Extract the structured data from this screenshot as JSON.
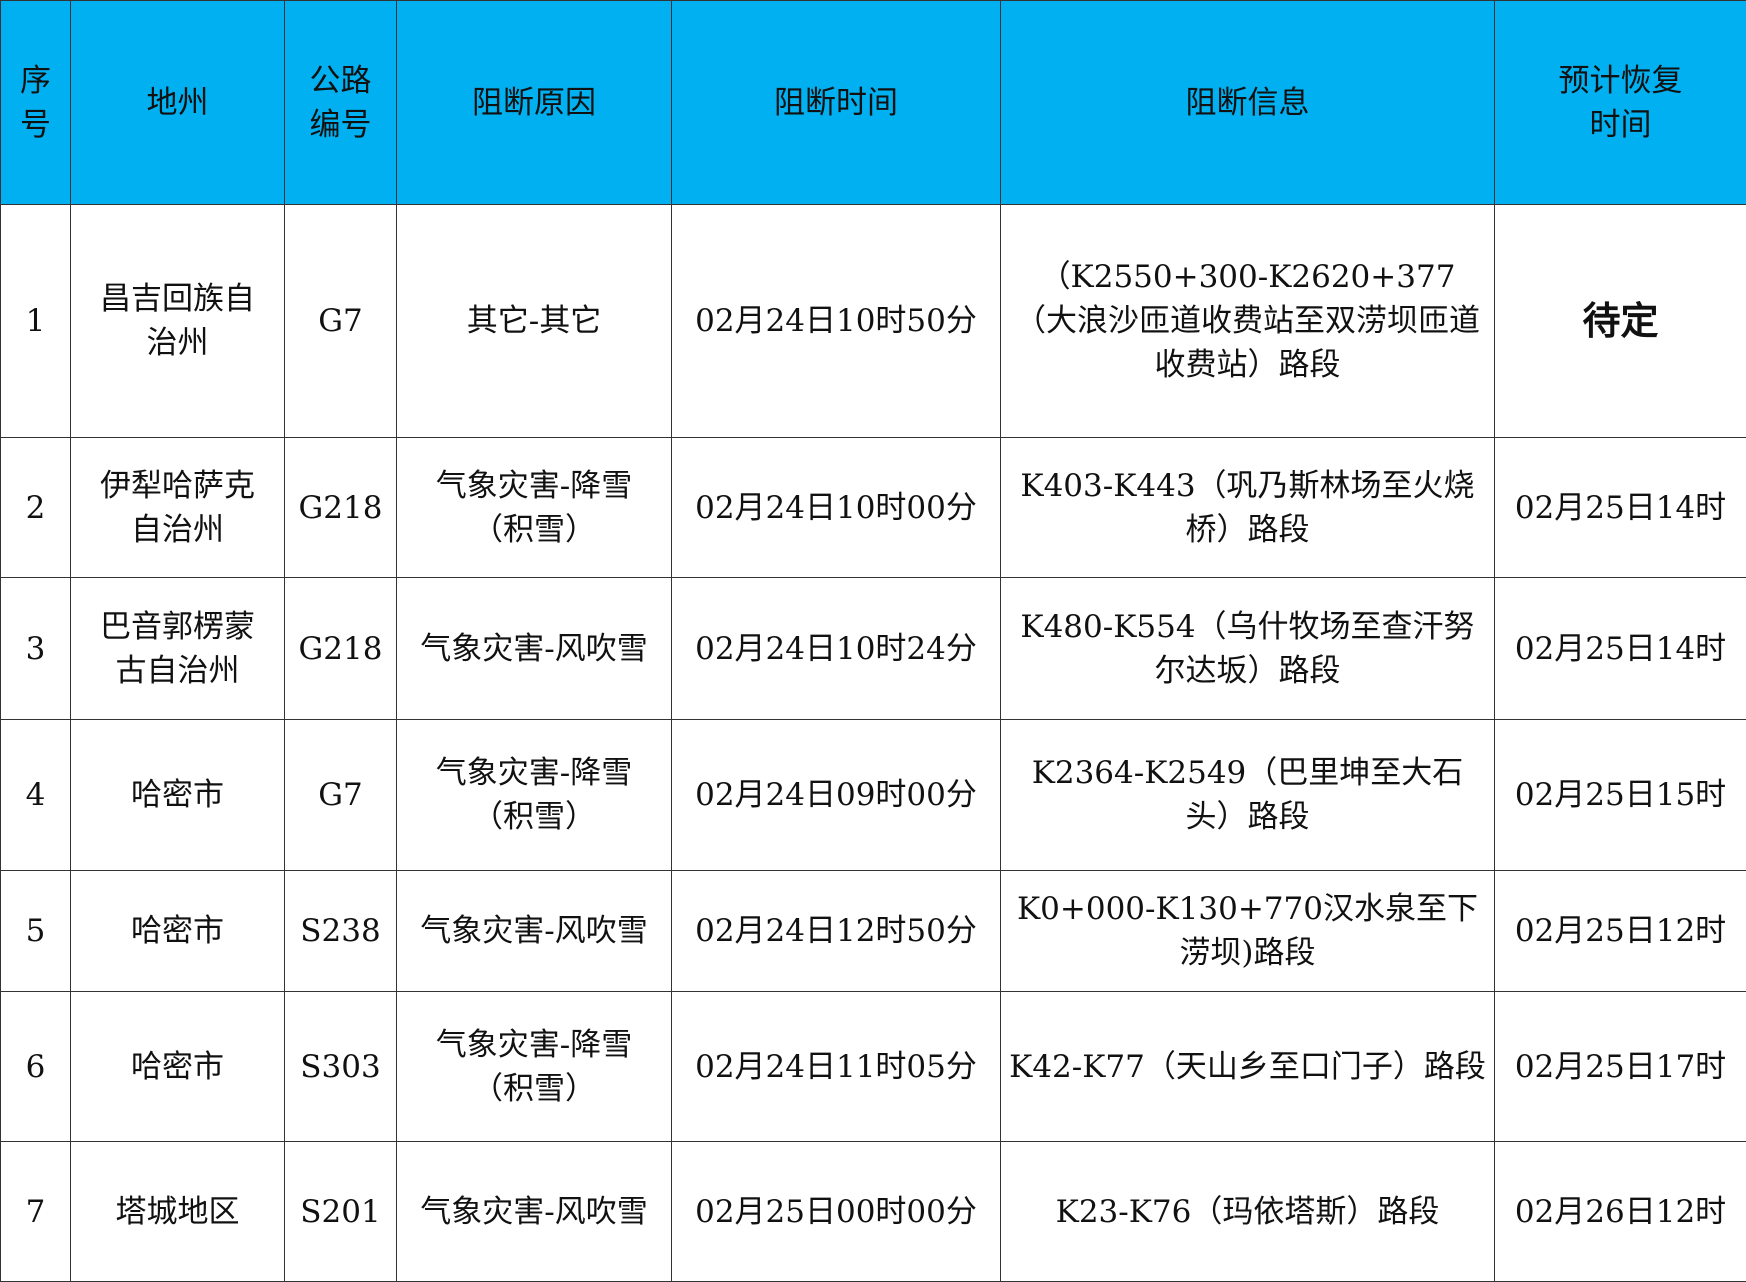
{
  "header_color": "#00b0f0",
  "columns": [
    "序号",
    "地州",
    "公路编号",
    "阻断原因",
    "阻断时间",
    "阻断信息",
    "预计恢复时间"
  ],
  "rows": [
    [
      "1",
      "昌吉回族自治州",
      "G7",
      "其它-其它",
      "02月24日10时50分",
      "（K2550+300-K2620+377（大浪沙匝道收费站至双涝坝匝道收费站）路段",
      "待定"
    ],
    [
      "2",
      "伊犁哈萨克自治州",
      "G218",
      "气象灾害-降雪（积雪）",
      "02月24日10时00分",
      "K403-K443（巩乃斯林场至火烧桥）路段",
      "02月25日14时"
    ],
    [
      "3",
      "巴音郭楞蒙古自治州",
      "G218",
      "气象灾害-风吹雪",
      "02月24日10时24分",
      "K480-K554（乌什牧场至查汗努尔达坂）路段",
      "02月25日14时"
    ],
    [
      "4",
      "哈密市",
      "G7",
      "气象灾害-降雪（积雪）",
      "02月24日09时00分",
      "K2364-K2549（巴里坤至大石头）路段",
      "02月25日15时"
    ],
    [
      "5",
      "哈密市",
      "S238",
      "气象灾害-风吹雪",
      "02月24日12时50分",
      "K0+000-K130+770汉水泉至下涝坝)路段",
      "02月25日12时"
    ],
    [
      "6",
      "哈密市",
      "S303",
      "气象灾害-降雪（积雪）",
      "02月24日11时05分",
      "K42-K77（天山乡至口门子）路段",
      "02月25日17时"
    ],
    [
      "7",
      "塔城地区",
      "S201",
      "气象灾害-风吹雪",
      "02月25日00时00分",
      "K23-K76（玛依塔斯）路段",
      "02月26日12时"
    ]
  ]
}
